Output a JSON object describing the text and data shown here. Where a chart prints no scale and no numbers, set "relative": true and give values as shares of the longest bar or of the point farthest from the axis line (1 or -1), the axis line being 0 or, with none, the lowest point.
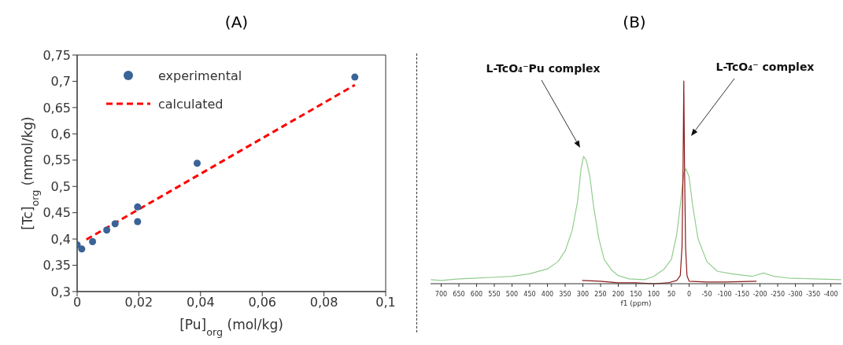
{
  "chart_data": [
    {
      "type": "scatter",
      "title": "(A)",
      "xlabel": "[Pu]$_{org}$ (mol/kg)",
      "ylabel": "[Tc]$_{org}$ (mmol/kg)",
      "xlim": [
        0,
        0.1
      ],
      "xticks": [
        {
          "value": 0,
          "label": "0"
        },
        {
          "value": 0.02,
          "label": "0,02"
        },
        {
          "value": 0.04,
          "label": "0,04"
        },
        {
          "value": 0.06,
          "label": "0,06"
        },
        {
          "value": 0.08,
          "label": "0,08"
        },
        {
          "value": 0.1,
          "label": "0,1"
        }
      ],
      "ylim": [
        0.3,
        0.75
      ],
      "yticks": [
        {
          "value": 0.3,
          "label": "0,3"
        },
        {
          "value": 0.35,
          "label": "0,35"
        },
        {
          "value": 0.4,
          "label": "0,4"
        },
        {
          "value": 0.45,
          "label": "0,45"
        },
        {
          "value": 0.5,
          "label": "0,5"
        },
        {
          "value": 0.55,
          "label": "0,55"
        },
        {
          "value": 0.6,
          "label": "0,6"
        },
        {
          "value": 0.65,
          "label": "0,65"
        },
        {
          "value": 0.7,
          "label": "0,7"
        },
        {
          "value": 0.75,
          "label": "0,75"
        }
      ],
      "legend": "top left",
      "series": [
        {
          "name": "experimental",
          "type": "scatter",
          "color": "#3a6397",
          "marker": "circle",
          "x": [
            0.0,
            0.0015,
            0.005,
            0.0096,
            0.0123,
            0.0196,
            0.0196,
            0.0389,
            0.09
          ],
          "values": [
            0.389,
            0.381,
            0.395,
            0.417,
            0.429,
            0.461,
            0.433,
            0.544,
            0.708
          ]
        },
        {
          "name": "calculated",
          "type": "line",
          "color": "#ff0000",
          "line_style": "dashed",
          "marker": "none",
          "x": [
            0.003,
            0.09
          ],
          "values": [
            0.399,
            0.693
          ]
        }
      ]
    },
    {
      "type": "line",
      "title": "(B)",
      "xlabel": "f1 (ppm)",
      "relative": true,
      "xlim": [
        730,
        -430
      ],
      "xticks": [
        700,
        650,
        600,
        550,
        500,
        450,
        400,
        350,
        300,
        250,
        200,
        150,
        100,
        50,
        0,
        -50,
        -100,
        -150,
        -200,
        -250,
        -300,
        -350,
        -400
      ],
      "annotations": [
        "L-TcO₄⁻Pu complex",
        "L-TcO₄⁻ complex"
      ],
      "series": [
        {
          "color": "#93cd8f",
          "x": [
            729,
            700,
            650,
            600,
            550,
            500,
            450,
            400,
            370,
            350,
            330,
            315,
            305,
            298,
            290,
            280,
            270,
            255,
            240,
            220,
            200,
            170,
            126,
            100,
            70,
            50,
            35,
            25,
            15,
            9,
            0,
            -10,
            -25,
            -50,
            -80,
            -120,
            -177,
            -210,
            -240,
            -280,
            -350,
            -429
          ],
          "values": [
            0.02,
            0.016,
            0.024,
            0.028,
            0.032,
            0.036,
            0.049,
            0.073,
            0.109,
            0.162,
            0.263,
            0.405,
            0.567,
            0.628,
            0.607,
            0.526,
            0.385,
            0.223,
            0.121,
            0.069,
            0.04,
            0.024,
            0.02,
            0.036,
            0.073,
            0.121,
            0.243,
            0.385,
            0.547,
            0.567,
            0.526,
            0.385,
            0.223,
            0.109,
            0.061,
            0.049,
            0.036,
            0.053,
            0.036,
            0.028,
            0.024,
            0.02
          ]
        },
        {
          "color": "#8b1a1a",
          "x": [
            302,
            250,
            200,
            150,
            100,
            60,
            35,
            25,
            20,
            17,
            15,
            13,
            10,
            6,
            0,
            -50,
            -100,
            -190
          ],
          "values": [
            0.016,
            0.012,
            0.004,
            0.004,
            0,
            0.004,
            0.016,
            0.04,
            0.18,
            0.59,
            1,
            0.59,
            0.18,
            0.04,
            0.012,
            0.008,
            0.008,
            0.012
          ]
        }
      ]
    }
  ]
}
